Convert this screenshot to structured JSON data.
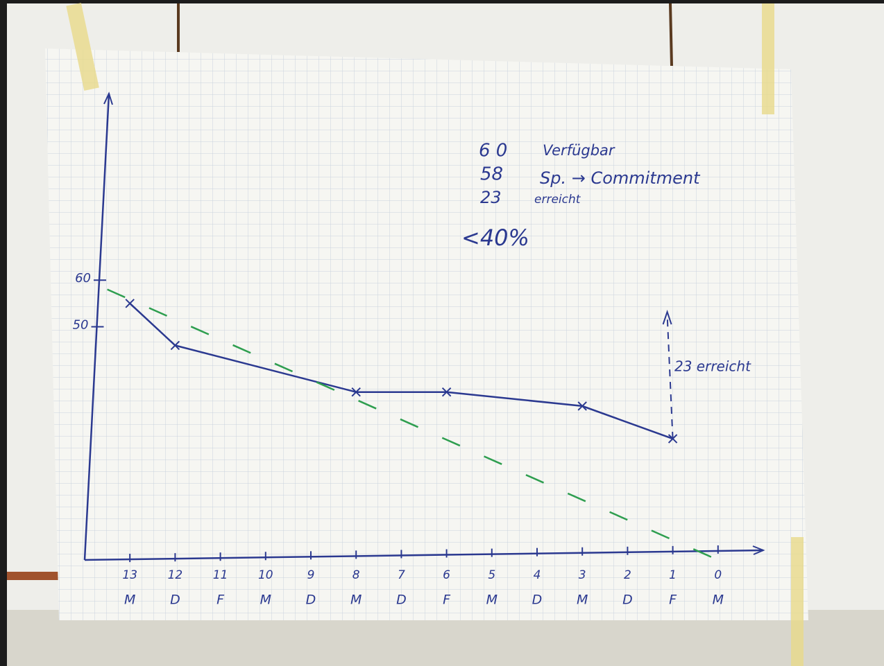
{
  "chart_data": {
    "type": "line",
    "xticks": [
      13,
      12,
      11,
      10,
      9,
      8,
      7,
      6,
      5,
      4,
      3,
      2,
      1,
      0
    ],
    "weekdays": [
      "M",
      "D",
      "F",
      "M",
      "D",
      "M",
      "D",
      "F",
      "M",
      "D",
      "M",
      "D",
      "F",
      "M"
    ],
    "xlim": [
      14,
      -1
    ],
    "ylim": [
      0,
      100
    ],
    "yticks": [
      50,
      60
    ],
    "series": [
      {
        "color": "#2b3990",
        "style": "solid",
        "x": [
          13,
          12,
          8,
          6,
          3,
          1
        ],
        "values": [
          55,
          46,
          36,
          36,
          33,
          26
        ]
      },
      {
        "color": "#2e9e4f",
        "style": "dashed",
        "x": [
          13.5,
          0
        ],
        "values": [
          58,
          0
        ]
      }
    ],
    "annotations": [
      "6 0",
      "Verfügbar",
      "58",
      "Sp. → Commitment",
      "23",
      "erreicht",
      "<40%",
      "23 erreicht"
    ]
  }
}
